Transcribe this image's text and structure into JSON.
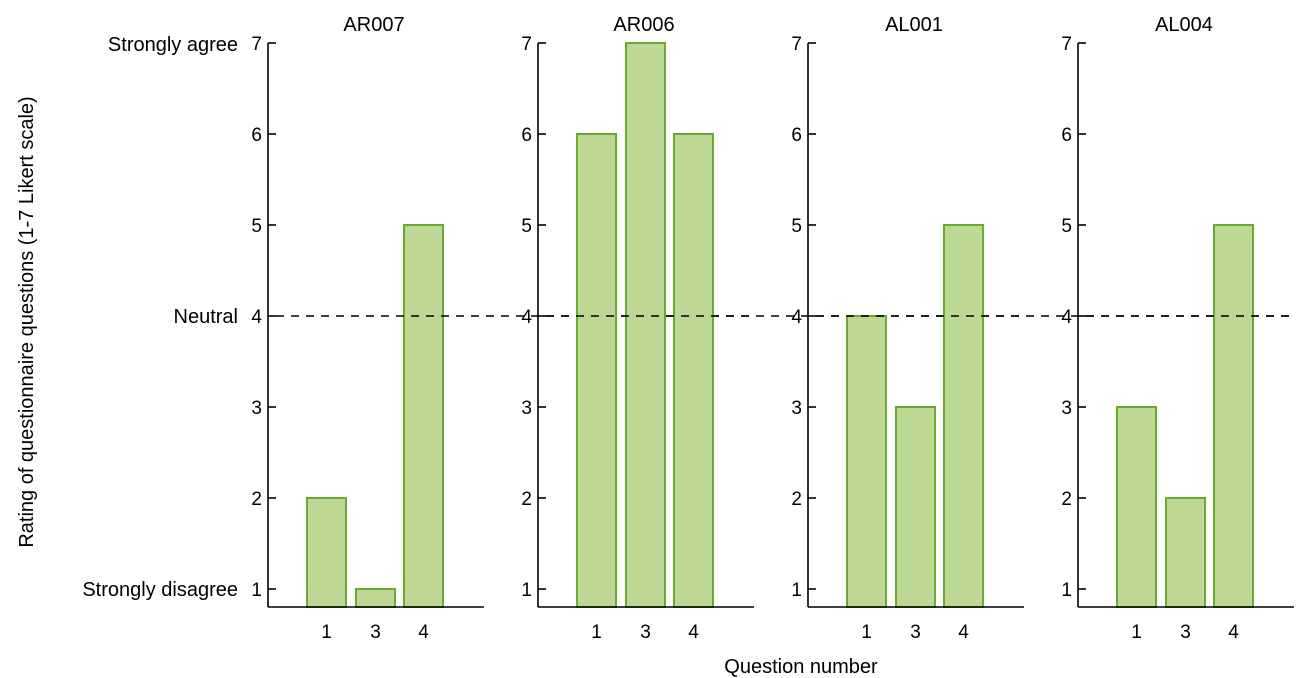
{
  "chart_data": {
    "type": "bar",
    "xlabel": "Question number",
    "ylabel": "Rating of questionnaire questions (1-7 Likert scale)",
    "ylim": [
      0.8,
      7
    ],
    "yticks": [
      1,
      2,
      3,
      4,
      5,
      6,
      7
    ],
    "y_anchor_labels": {
      "7": "Strongly agree",
      "4": "Neutral",
      "1": "Strongly disagree"
    },
    "reference_line": {
      "y": 4,
      "style": "dashed"
    },
    "categories": [
      "1",
      "3",
      "4"
    ],
    "bar_fill": "#bdd795",
    "bar_edge": "#6aaa2e",
    "panels": [
      {
        "title": "AR007",
        "values": [
          2,
          1,
          5
        ]
      },
      {
        "title": "AR006",
        "values": [
          6,
          7,
          6
        ]
      },
      {
        "title": "AL001",
        "values": [
          4,
          3,
          5
        ]
      },
      {
        "title": "AL004",
        "values": [
          3,
          2,
          5
        ]
      }
    ]
  }
}
